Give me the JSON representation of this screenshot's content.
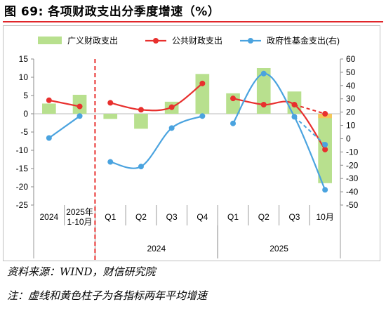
{
  "title": "图 69:  各项财政支出分季度增速（%）",
  "source": "资料来源：WIND，财信研究院",
  "note": "注：虚线和黄色柱子为各指标两年平均增速",
  "chart_data": {
    "type": "bar-line-combo",
    "categories": [
      "2024",
      "2025年 1-10月",
      "Q1",
      "Q2",
      "Q3",
      "Q4",
      "Q1",
      "Q2",
      "Q3",
      "10月"
    ],
    "category_lines": [
      [
        "2024"
      ],
      [
        "2025年",
        "1-10月"
      ],
      [
        "Q1"
      ],
      [
        "Q2"
      ],
      [
        "Q3"
      ],
      [
        "Q4"
      ],
      [
        "Q1"
      ],
      [
        "Q2"
      ],
      [
        "Q3"
      ],
      [
        "10月"
      ]
    ],
    "groups": [
      {
        "label": "2024",
        "from": 2,
        "to": 5
      },
      {
        "label": "2025",
        "from": 6,
        "to": 9
      }
    ],
    "left_axis": {
      "min": -25,
      "max": 15,
      "step": 5,
      "ticks": [
        "15",
        "10",
        "5",
        "0",
        "-5",
        "-10",
        "-15",
        "-20",
        "-25"
      ]
    },
    "right_axis": {
      "min": -50,
      "max": 60,
      "step": 10,
      "ticks": [
        "60",
        "50",
        "40",
        "30",
        "20",
        "10",
        "0",
        "-10",
        "-20",
        "-30",
        "-40",
        "-50"
      ]
    },
    "series": [
      {
        "name": "广义财政支出",
        "kind": "bar",
        "axis": "left",
        "color": "#b8e08e",
        "values": [
          2.8,
          5.2,
          -1.4,
          -4.1,
          3.3,
          10.9,
          5.6,
          12.5,
          6.1,
          -19.0
        ]
      },
      {
        "name": "公共财政支出",
        "kind": "line",
        "axis": "left",
        "color": "#e8302e",
        "values": [
          3.7,
          2.0,
          3.0,
          1.1,
          1.8,
          8.3,
          4.2,
          2.5,
          2.5,
          -9.8
        ]
      },
      {
        "name": "政府性基金支出(右)",
        "kind": "line",
        "axis": "right",
        "color": "#4aa3df",
        "values": [
          0.5,
          17.0,
          -17.5,
          -21.0,
          8.0,
          17.0,
          11.5,
          49.0,
          16.5,
          -38.5
        ]
      }
    ],
    "two_year_average": {
      "category_index": 9,
      "bar_value": -1.2,
      "bar_color": "#f5c65a",
      "public_value": 0.0,
      "fund_value": -4.5
    },
    "separator_after_index": 1,
    "separator_color": "#e8302e",
    "legend_position": "top"
  }
}
